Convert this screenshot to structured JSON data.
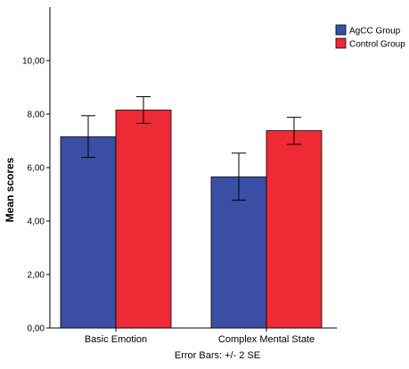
{
  "chart_data": {
    "type": "bar",
    "title": "",
    "xlabel": "",
    "ylabel": "Mean scores",
    "ylim": [
      0,
      12
    ],
    "yticks": [
      {
        "value": 0,
        "label": "0,00"
      },
      {
        "value": 2,
        "label": "2,00"
      },
      {
        "value": 4,
        "label": "4,00"
      },
      {
        "value": 6,
        "label": "6,00"
      },
      {
        "value": 8,
        "label": "8,00"
      },
      {
        "value": 10,
        "label": "10,00"
      }
    ],
    "categories": [
      "Basic Emotion",
      "Complex Mental State"
    ],
    "series": [
      {
        "name": "AgCC Group",
        "color": "#3a4fa3",
        "values": [
          7.15,
          5.65
        ],
        "error_low": [
          6.38,
          4.78
        ],
        "error_high": [
          7.94,
          6.54
        ]
      },
      {
        "name": "Control Group",
        "color": "#ee2a35",
        "values": [
          8.15,
          7.38
        ],
        "error_low": [
          7.65,
          6.87
        ],
        "error_high": [
          8.65,
          7.88
        ]
      }
    ],
    "grid": false,
    "legend_position": "top-right",
    "footnote": "Error Bars: +/- 2 SE"
  }
}
